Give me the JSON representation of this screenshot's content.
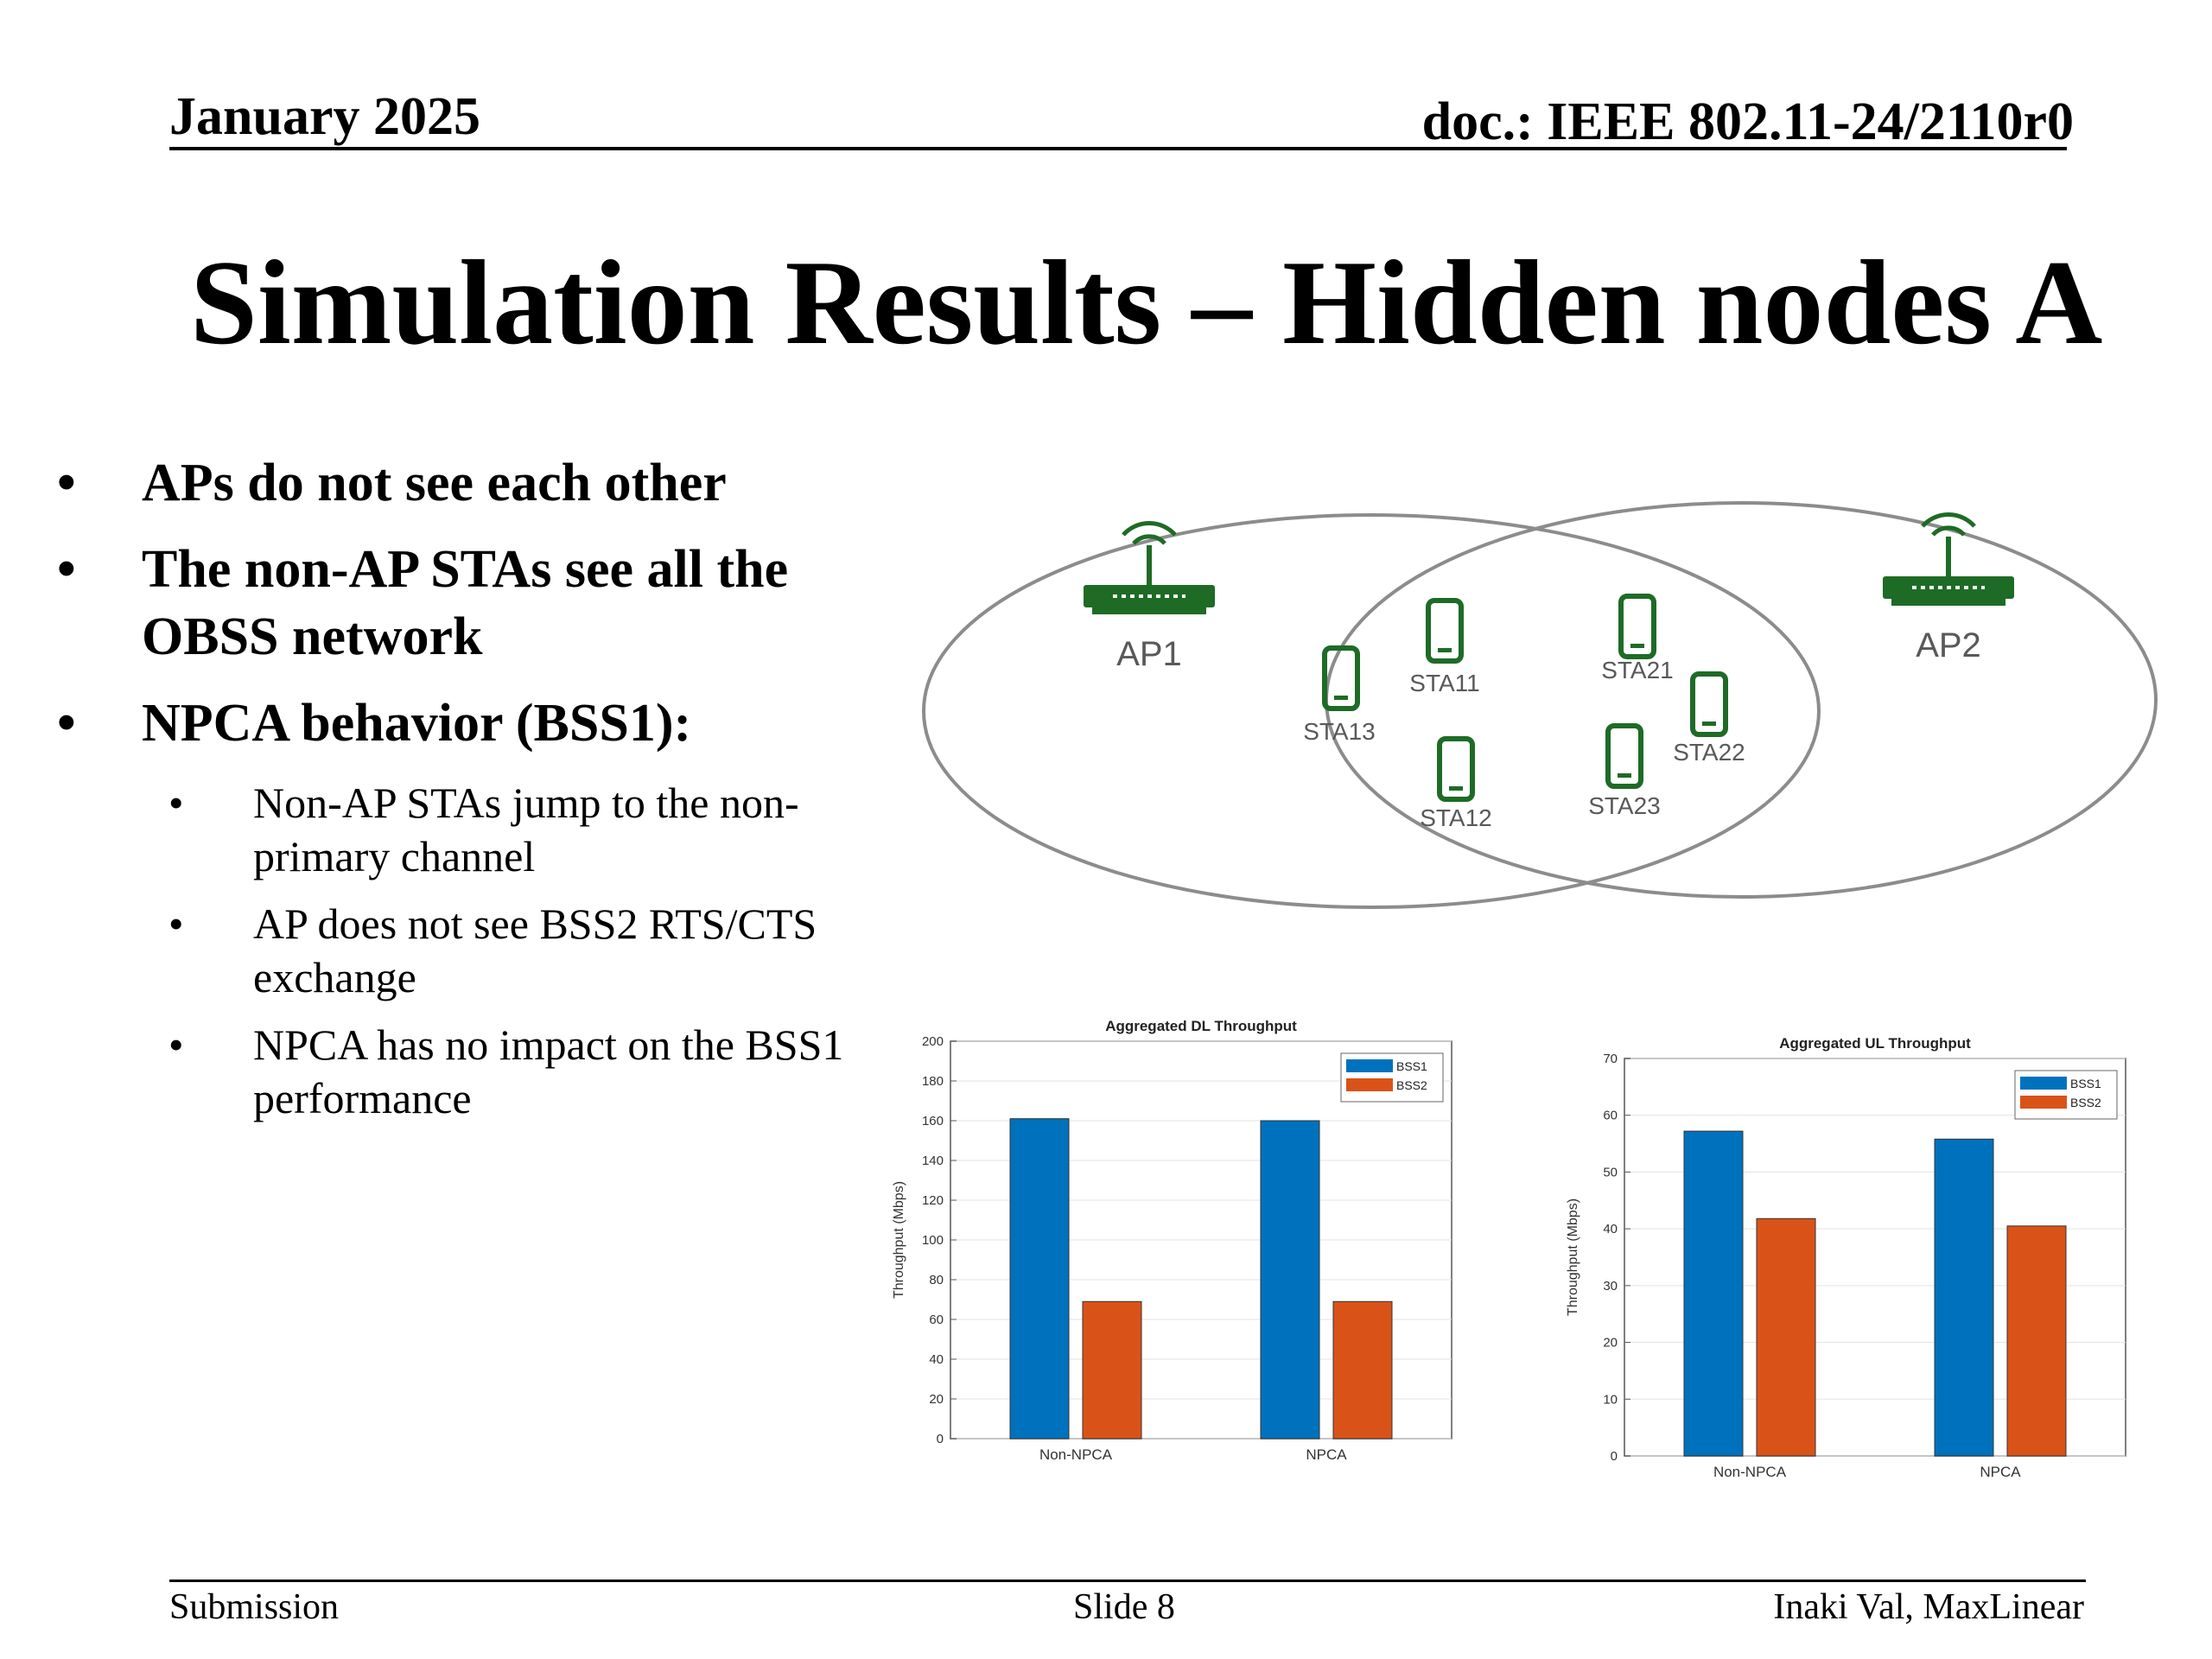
{
  "header": {
    "date": "January 2025",
    "doc": "doc.: IEEE 802.11-24/2110r0"
  },
  "title": "Simulation Results – Hidden nodes A",
  "bullets": [
    {
      "text": "APs do not see each other",
      "sub": []
    },
    {
      "text": "The non-AP STAs see all the OBSS network",
      "sub": []
    },
    {
      "text": "NPCA behavior (BSS1):",
      "sub": [
        "Non-AP STAs jump to the non-primary channel",
        "AP does not see BSS2 RTS/CTS exchange",
        "NPCA has no impact on the BSS1 performance"
      ]
    }
  ],
  "diagram": {
    "ap1": "AP1",
    "ap2": "AP2",
    "stas": [
      "STA11",
      "STA12",
      "STA13",
      "STA21",
      "STA22",
      "STA23"
    ],
    "colors": {
      "device": "#1e6b26",
      "circle": "#8c8c8c",
      "label": "#595959"
    }
  },
  "chart_data": [
    {
      "type": "bar",
      "title": "Aggregated DL Throughput",
      "ylabel": "Throughput (Mbps)",
      "xlabel": "",
      "categories": [
        "Non-NPCA",
        "NPCA"
      ],
      "series": [
        {
          "name": "BSS1",
          "values": [
            161,
            160
          ],
          "color": "#0072bd"
        },
        {
          "name": "BSS2",
          "values": [
            69,
            69
          ],
          "color": "#d95319"
        }
      ],
      "ylim": [
        0,
        200
      ],
      "yticks": [
        0,
        20,
        40,
        60,
        80,
        100,
        120,
        140,
        160,
        180,
        200
      ],
      "grid": true,
      "legend": "top-right"
    },
    {
      "type": "bar",
      "title": "Aggregated UL Throughput",
      "ylabel": "Throughput (Mbps)",
      "xlabel": "",
      "categories": [
        "Non-NPCA",
        "NPCA"
      ],
      "series": [
        {
          "name": "BSS1",
          "values": [
            57.2,
            55.8
          ],
          "color": "#0072bd"
        },
        {
          "name": "BSS2",
          "values": [
            41.8,
            40.5
          ],
          "color": "#d95319"
        }
      ],
      "ylim": [
        0,
        70
      ],
      "yticks": [
        0,
        10,
        20,
        30,
        40,
        50,
        60,
        70
      ],
      "grid": true,
      "legend": "top-right"
    }
  ],
  "footer": {
    "left": "Submission",
    "center": "Slide 8",
    "right": "Inaki Val, MaxLinear"
  }
}
